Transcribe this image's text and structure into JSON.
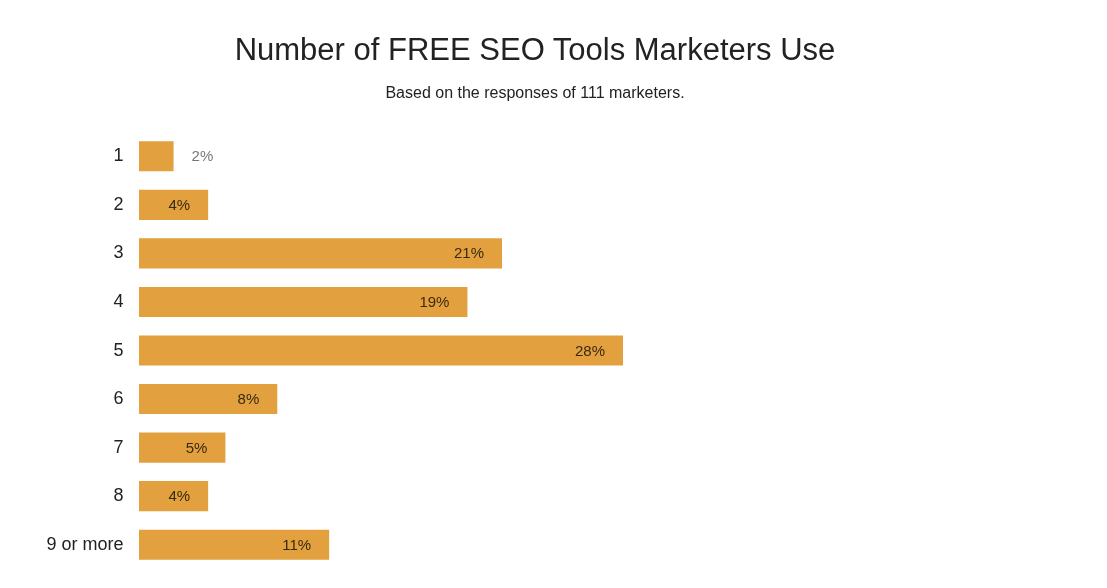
{
  "chart_data": {
    "type": "bar",
    "orientation": "horizontal",
    "title": "Number of FREE SEO Tools Marketers Use",
    "subtitle": "Based on the responses of 111 marketers.",
    "categories": [
      "1",
      "2",
      "3",
      "4",
      "5",
      "6",
      "7",
      "8",
      "9  or more"
    ],
    "values": [
      2,
      4,
      21,
      19,
      28,
      8,
      5,
      4,
      11
    ],
    "value_labels": [
      "2%",
      "4%",
      "21%",
      "19%",
      "28%",
      "8%",
      "5%",
      "4%",
      "11%"
    ],
    "color": "#e2a03f",
    "grid": false
  }
}
